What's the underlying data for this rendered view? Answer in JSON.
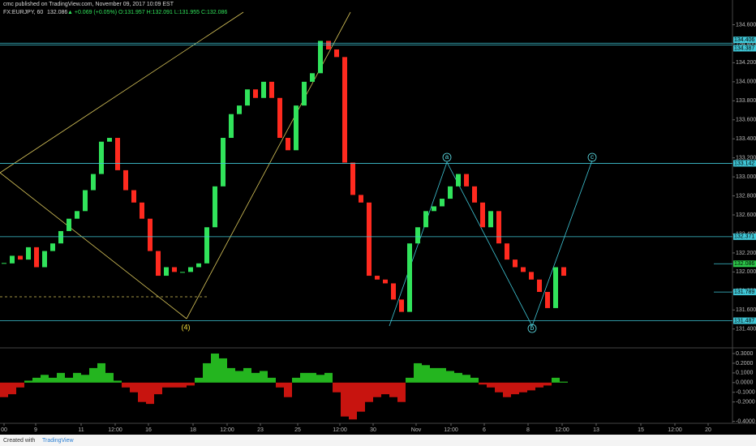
{
  "header": {
    "publisher": "cmc published on TradingView.com, November 09, 2017 10:09 EST",
    "symbol": "FX:EURJPY, 60",
    "last": "132.086",
    "change": "▲ +0.069 (+0.05%)",
    "ohlc": "O:131.957 H:132.091 L:131.955 C:132.086"
  },
  "footer": {
    "created": "Created with",
    "brand": "TradingView"
  },
  "chart_data": [
    {
      "type": "candlestick",
      "name": "EURJPY",
      "up_color": "#31e35b",
      "down_color": "#ff2a1f",
      "values": [
        132.09,
        132.17,
        132.13,
        132.26,
        132.05,
        132.22,
        132.3,
        132.43,
        132.56,
        132.64,
        132.86,
        133.03,
        133.37,
        133.41,
        133.07,
        132.86,
        132.73,
        132.56,
        132.22,
        131.96,
        132.05,
        132.0,
        132.0,
        132.05,
        132.09,
        132.47,
        132.9,
        133.41,
        133.66,
        133.75,
        133.92,
        133.83,
        134.0,
        133.83,
        133.41,
        133.28,
        133.75,
        134.0,
        134.09,
        134.43,
        134.34,
        134.26,
        133.15,
        132.81,
        132.73,
        131.96,
        131.92,
        131.88,
        131.71,
        131.58,
        132.3,
        132.47,
        132.64,
        132.69,
        132.77,
        132.9,
        133.03,
        132.9,
        132.73,
        132.47,
        132.64,
        132.3,
        132.13,
        132.05,
        132.0,
        131.92,
        131.79,
        131.62,
        132.05,
        131.96
      ],
      "xlim": [
        -0.5,
        89.8
      ],
      "xticks": [
        {
          "value": 0,
          "label": "00"
        },
        {
          "value": 3.9,
          "label": "9"
        },
        {
          "value": 9.5,
          "label": "11"
        },
        {
          "value": 13.7,
          "label": "12:00"
        },
        {
          "value": 17.8,
          "label": "16"
        },
        {
          "value": 23.3,
          "label": "18"
        },
        {
          "value": 27.5,
          "label": "12:00"
        },
        {
          "value": 31.6,
          "label": "23"
        },
        {
          "value": 36.2,
          "label": "25"
        },
        {
          "value": 41.4,
          "label": "12:00"
        },
        {
          "value": 45.5,
          "label": "30"
        },
        {
          "value": 50.8,
          "label": "Nov"
        },
        {
          "value": 55.1,
          "label": "12:00"
        },
        {
          "value": 59.2,
          "label": "6"
        },
        {
          "value": 64.6,
          "label": "8"
        },
        {
          "value": 68.8,
          "label": "12:00"
        },
        {
          "value": 73,
          "label": "13"
        },
        {
          "value": 78.5,
          "label": "15"
        },
        {
          "value": 82.7,
          "label": "12:00"
        },
        {
          "value": 86.8,
          "label": "20"
        }
      ],
      "ylim": [
        131.21,
        134.86
      ],
      "yticks": [
        {
          "value": 134.6,
          "label": "134.600"
        },
        {
          "value": 134.4,
          "label": "134.400"
        },
        {
          "value": 134.2,
          "label": "134.200"
        },
        {
          "value": 134,
          "label": "134.000"
        },
        {
          "value": 133.8,
          "label": "133.800"
        },
        {
          "value": 133.6,
          "label": "133.600"
        },
        {
          "value": 133.4,
          "label": "133.400"
        },
        {
          "value": 133.2,
          "label": "133.200"
        },
        {
          "value": 133,
          "label": "133.000"
        },
        {
          "value": 132.8,
          "label": "132.800"
        },
        {
          "value": 132.6,
          "label": "132.600"
        },
        {
          "value": 132.4,
          "label": "132.400"
        },
        {
          "value": 132.2,
          "label": "132.200"
        },
        {
          "value": 132,
          "label": "132.000"
        },
        {
          "value": 131.8,
          "label": "131.800"
        },
        {
          "value": 131.6,
          "label": "131.600"
        },
        {
          "value": 131.4,
          "label": "131.400"
        }
      ],
      "levels": [
        {
          "value": 134.406,
          "label": "134.406"
        },
        {
          "value": 134.387,
          "label": "134.387"
        },
        {
          "value": 133.142,
          "label": "133.142"
        },
        {
          "value": 132.371,
          "label": "132.371"
        },
        {
          "value": 132.086,
          "label": "132.086"
        },
        {
          "value": 131.789,
          "label": "131.789"
        },
        {
          "value": 131.487,
          "label": "131.487"
        }
      ],
      "level_color": "#3fc6d6",
      "annotations": [
        "a",
        "b",
        "c",
        "(4)"
      ]
    },
    {
      "type": "histogram",
      "name": "oscillator",
      "up_color": "#24b51f",
      "down_color": "#c8140f",
      "values": [
        -0.15,
        -0.12,
        -0.05,
        0.02,
        0.05,
        0.08,
        0.05,
        0.1,
        0.05,
        0.1,
        0.08,
        0.15,
        0.2,
        0.1,
        0.02,
        -0.05,
        -0.1,
        -0.2,
        -0.22,
        -0.12,
        -0.05,
        -0.05,
        -0.05,
        -0.03,
        0.05,
        0.2,
        0.3,
        0.25,
        0.15,
        0.12,
        0.15,
        0.1,
        0.12,
        0.05,
        -0.05,
        -0.15,
        0.05,
        0.1,
        0.1,
        0.08,
        0.1,
        -0.1,
        -0.35,
        -0.38,
        -0.3,
        -0.2,
        -0.15,
        -0.12,
        -0.15,
        -0.2,
        0.05,
        0.2,
        0.18,
        0.15,
        0.15,
        0.12,
        0.1,
        0.08,
        0.05,
        -0.02,
        -0.05,
        -0.1,
        -0.15,
        -0.12,
        -0.1,
        -0.08,
        -0.05,
        -0.03,
        0.05,
        0.01
      ],
      "xlim": [
        -0.5,
        89.8
      ],
      "ylim": [
        -0.42,
        0.35
      ],
      "yticks": [
        {
          "value": 0.3,
          "label": "0.3000"
        },
        {
          "value": 0.2,
          "label": "0.2000"
        },
        {
          "value": 0.1,
          "label": "0.1000"
        },
        {
          "value": 0,
          "label": "0.0000"
        },
        {
          "value": -0.1,
          "label": "-0.1000"
        },
        {
          "value": -0.2,
          "label": "-0.2000"
        },
        {
          "value": -0.4,
          "label": "-0.4000"
        }
      ]
    }
  ]
}
